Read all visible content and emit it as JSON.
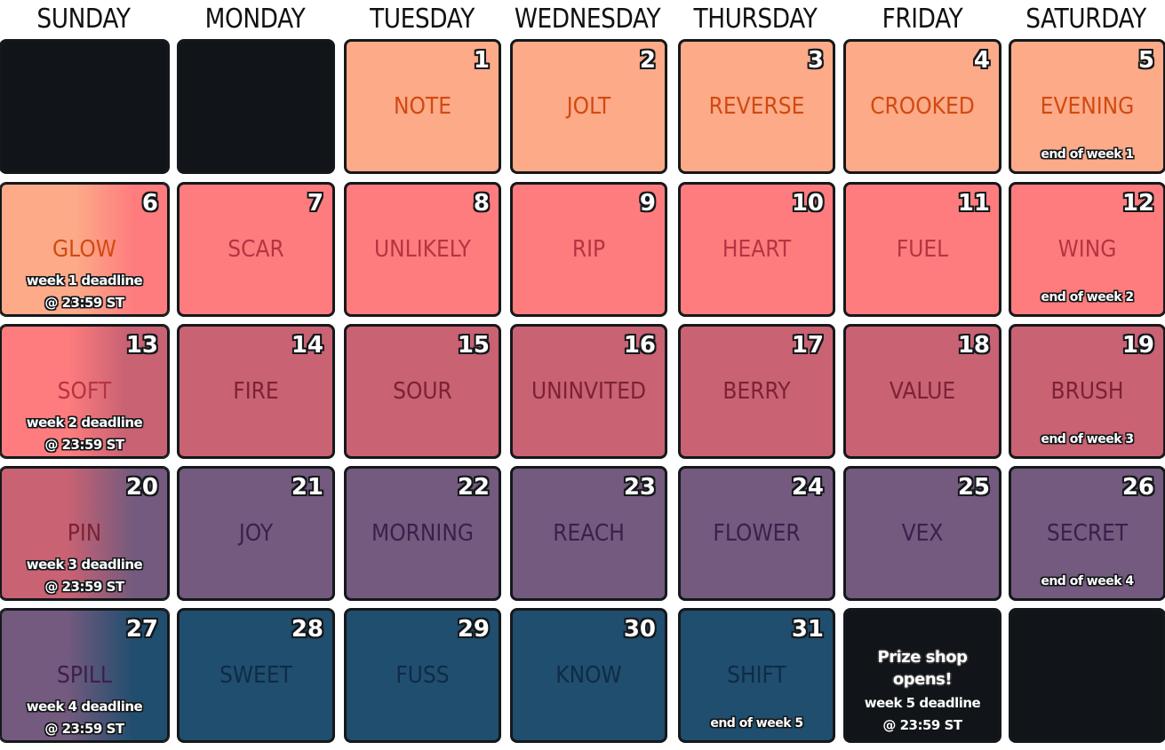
{
  "days": [
    "SUNDAY",
    "MONDAY",
    "TUESDAY",
    "WEDNESDAY",
    "THURSDAY",
    "FRIDAY",
    "SATURDAY"
  ],
  "colors": {
    "dark": "#111519",
    "peach": "#fcaa88",
    "peach_text": "#d14a10",
    "coral": "#fe7c7e",
    "coral_text": "#b63442",
    "rose": "#c96273",
    "rose_text": "#7c2235",
    "plum": "#735a7e",
    "plum_text": "#3d1e4c",
    "navy": "#204e6e",
    "navy_text": "#0f2b47"
  },
  "cells": [
    {
      "row": 0,
      "col": 0,
      "theme": "dark"
    },
    {
      "row": 0,
      "col": 1,
      "theme": "dark"
    },
    {
      "row": 0,
      "col": 2,
      "theme": "peach",
      "num": "1",
      "word": "NOTE"
    },
    {
      "row": 0,
      "col": 3,
      "theme": "peach",
      "num": "2",
      "word": "JOLT"
    },
    {
      "row": 0,
      "col": 4,
      "theme": "peach",
      "num": "3",
      "word": "REVERSE"
    },
    {
      "row": 0,
      "col": 5,
      "theme": "peach",
      "num": "4",
      "word": "CROOKED"
    },
    {
      "row": 0,
      "col": 6,
      "theme": "peach",
      "num": "5",
      "word": "EVENING",
      "eow": "end of week 1"
    },
    {
      "row": 1,
      "col": 0,
      "theme": "peach-coral",
      "num": "6",
      "word": "GLOW",
      "deadline": [
        "week 1 deadline",
        "@ 23:59 ST"
      ]
    },
    {
      "row": 1,
      "col": 1,
      "theme": "coral",
      "num": "7",
      "word": "SCAR"
    },
    {
      "row": 1,
      "col": 2,
      "theme": "coral",
      "num": "8",
      "word": "UNLIKELY"
    },
    {
      "row": 1,
      "col": 3,
      "theme": "coral",
      "num": "9",
      "word": "RIP"
    },
    {
      "row": 1,
      "col": 4,
      "theme": "coral",
      "num": "10",
      "word": "HEART"
    },
    {
      "row": 1,
      "col": 5,
      "theme": "coral",
      "num": "11",
      "word": "FUEL"
    },
    {
      "row": 1,
      "col": 6,
      "theme": "coral",
      "num": "12",
      "word": "WING",
      "eow": "end of week 2"
    },
    {
      "row": 2,
      "col": 0,
      "theme": "coral-rose",
      "num": "13",
      "word": "SOFT",
      "deadline": [
        "week 2 deadline",
        "@ 23:59 ST"
      ]
    },
    {
      "row": 2,
      "col": 1,
      "theme": "rose",
      "num": "14",
      "word": "FIRE"
    },
    {
      "row": 2,
      "col": 2,
      "theme": "rose",
      "num": "15",
      "word": "SOUR"
    },
    {
      "row": 2,
      "col": 3,
      "theme": "rose",
      "num": "16",
      "word": "UNINVITED"
    },
    {
      "row": 2,
      "col": 4,
      "theme": "rose",
      "num": "17",
      "word": "BERRY"
    },
    {
      "row": 2,
      "col": 5,
      "theme": "rose",
      "num": "18",
      "word": "VALUE"
    },
    {
      "row": 2,
      "col": 6,
      "theme": "rose",
      "num": "19",
      "word": "BRUSH",
      "eow": "end of week 3"
    },
    {
      "row": 3,
      "col": 0,
      "theme": "rose-plum",
      "num": "20",
      "word": "PIN",
      "deadline": [
        "week 3 deadline",
        "@ 23:59 ST"
      ]
    },
    {
      "row": 3,
      "col": 1,
      "theme": "plum",
      "num": "21",
      "word": "JOY"
    },
    {
      "row": 3,
      "col": 2,
      "theme": "plum",
      "num": "22",
      "word": "MORNING"
    },
    {
      "row": 3,
      "col": 3,
      "theme": "plum",
      "num": "23",
      "word": "REACH"
    },
    {
      "row": 3,
      "col": 4,
      "theme": "plum",
      "num": "24",
      "word": "FLOWER"
    },
    {
      "row": 3,
      "col": 5,
      "theme": "plum",
      "num": "25",
      "word": "VEX"
    },
    {
      "row": 3,
      "col": 6,
      "theme": "plum",
      "num": "26",
      "word": "SECRET",
      "eow": "end of week 4"
    },
    {
      "row": 4,
      "col": 0,
      "theme": "plum-navy",
      "num": "27",
      "word": "SPILL",
      "deadline": [
        "week 4 deadline",
        "@ 23:59 ST"
      ]
    },
    {
      "row": 4,
      "col": 1,
      "theme": "navy",
      "num": "28",
      "word": "SWEET"
    },
    {
      "row": 4,
      "col": 2,
      "theme": "navy",
      "num": "29",
      "word": "FUSS"
    },
    {
      "row": 4,
      "col": 3,
      "theme": "navy",
      "num": "30",
      "word": "KNOW"
    },
    {
      "row": 4,
      "col": 4,
      "theme": "navy",
      "num": "31",
      "word": "SHIFT",
      "eow": "end of week 5"
    },
    {
      "row": 4,
      "col": 5,
      "theme": "dark",
      "prize": "Prize shop opens!",
      "deadline_plain": [
        "week 5 deadline",
        "@ 23:59 ST"
      ]
    },
    {
      "row": 4,
      "col": 6,
      "theme": "dark"
    }
  ]
}
